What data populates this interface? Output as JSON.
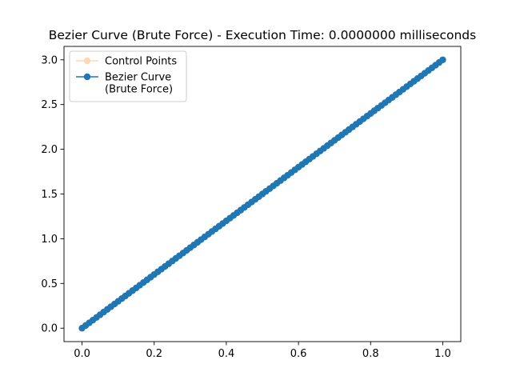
{
  "chart_data": {
    "type": "line",
    "title": "Bezier Curve (Brute Force) - Execution Time: 0.0000000 milliseconds",
    "xlabel": "",
    "ylabel": "",
    "xlim": [
      -0.05,
      1.05
    ],
    "ylim": [
      -0.15,
      3.15
    ],
    "xticks": [
      0.0,
      0.2,
      0.4,
      0.6,
      0.8,
      1.0
    ],
    "xtick_labels": [
      "0.0",
      "0.2",
      "0.4",
      "0.6",
      "0.8",
      "1.0"
    ],
    "yticks": [
      0.0,
      0.5,
      1.0,
      1.5,
      2.0,
      2.5,
      3.0
    ],
    "ytick_labels": [
      "0.0",
      "0.5",
      "1.0",
      "1.5",
      "2.0",
      "2.5",
      "3.0"
    ],
    "grid": false,
    "legend": {
      "position": "top-left",
      "entries": [
        {
          "label_lines": [
            "Control Points"
          ],
          "color": "#fdd9b5"
        },
        {
          "label_lines": [
            "Bezier Curve",
            "(Brute Force)"
          ],
          "color": "#1f77b4"
        }
      ]
    },
    "series": [
      {
        "name": "Control Points",
        "color": "#fdd9b5",
        "marker": "circle",
        "x": [
          0.0,
          1.0
        ],
        "y": [
          0.0,
          3.0
        ]
      },
      {
        "name": "Bezier Curve (Brute Force)",
        "color": "#1f77b4",
        "marker": "circle",
        "x_start": 0.0,
        "x_end": 1.0,
        "num_points": 101,
        "slope": 3.0
      }
    ]
  }
}
